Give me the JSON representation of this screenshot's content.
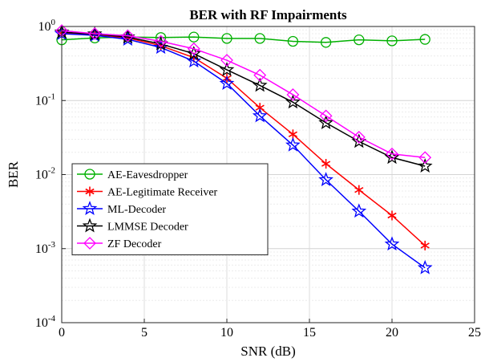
{
  "chart_data": {
    "type": "line",
    "title": "BER with RF Impairments",
    "xlabel": "SNR (dB)",
    "ylabel": "BER",
    "xlim": [
      0,
      25
    ],
    "ylim": [
      0.0001,
      1
    ],
    "yscale": "log",
    "grid": true,
    "legend_position": "lower-left",
    "x_ticks": [
      "0",
      "5",
      "10",
      "15",
      "20",
      "25"
    ],
    "y_ticks": [
      {
        "base": "10",
        "exp": "0"
      },
      {
        "base": "10",
        "exp": "-1"
      },
      {
        "base": "10",
        "exp": "-2"
      },
      {
        "base": "10",
        "exp": "-3"
      },
      {
        "base": "10",
        "exp": "-4"
      }
    ],
    "x": [
      0,
      2,
      4,
      6,
      8,
      10,
      12,
      14,
      16,
      18,
      20,
      22
    ],
    "series": [
      {
        "name": "AE-Eavesdropper",
        "color": "#00b000",
        "marker": "circle",
        "values": [
          0.66,
          0.7,
          0.72,
          0.71,
          0.72,
          0.69,
          0.69,
          0.63,
          0.61,
          0.66,
          0.64,
          0.67
        ]
      },
      {
        "name": "AE-Legitimate Receiver",
        "color": "#ff0000",
        "marker": "asterisk",
        "values": [
          0.82,
          0.78,
          0.7,
          0.55,
          0.38,
          0.2,
          0.08,
          0.035,
          0.014,
          0.0062,
          0.0028,
          0.0011
        ]
      },
      {
        "name": "ML-Decoder",
        "color": "#0000ff",
        "marker": "star",
        "values": [
          0.8,
          0.76,
          0.67,
          0.52,
          0.34,
          0.17,
          0.062,
          0.025,
          0.0085,
          0.0032,
          0.00115,
          0.00055
        ]
      },
      {
        "name": "LMMSE Decoder",
        "color": "#000000",
        "marker": "star",
        "values": [
          0.84,
          0.79,
          0.72,
          0.58,
          0.43,
          0.26,
          0.16,
          0.095,
          0.05,
          0.028,
          0.017,
          0.013
        ]
      },
      {
        "name": "ZF Decoder",
        "color": "#ff00ff",
        "marker": "diamond",
        "values": [
          0.88,
          0.8,
          0.75,
          0.63,
          0.5,
          0.35,
          0.22,
          0.12,
          0.062,
          0.032,
          0.019,
          0.017
        ]
      }
    ]
  }
}
